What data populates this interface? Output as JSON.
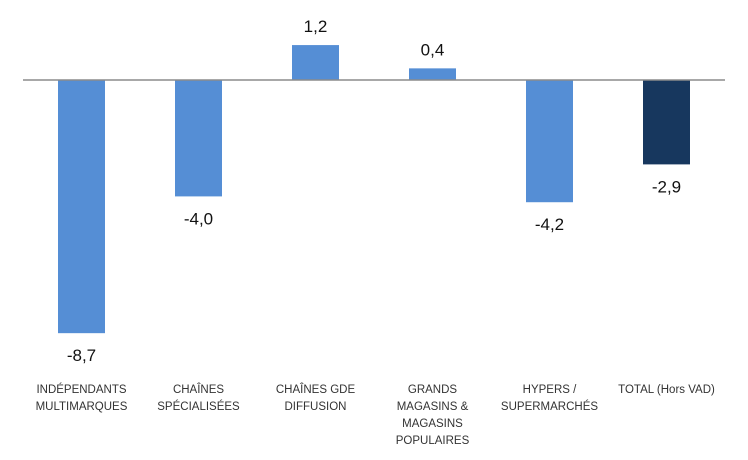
{
  "chart_data": {
    "type": "bar",
    "categories": [
      [
        "INDÉPENDANTS",
        "MULTIMARQUES"
      ],
      [
        "CHAÎNES",
        "SPÉCIALISÉES"
      ],
      [
        "CHAÎNES GDE",
        "DIFFUSION"
      ],
      [
        "GRANDS",
        "MAGASINS &",
        "MAGASINS",
        "POPULAIRES"
      ],
      [
        "HYPERS /",
        "SUPERMARCHÉS"
      ],
      [
        "TOTAL (Hors VAD)"
      ]
    ],
    "values": [
      -8.7,
      -4.0,
      1.2,
      0.4,
      -4.2,
      -2.9
    ],
    "value_labels": [
      "-8,7",
      "-4,0",
      "1,2",
      "0,4",
      "-4,2",
      "-2,9"
    ],
    "colors": [
      "#558ed5",
      "#558ed5",
      "#558ed5",
      "#558ed5",
      "#558ed5",
      "#17375e"
    ],
    "axis_color": "#8c8c8c",
    "ylim": [
      -8.7,
      1.2
    ],
    "grid": false,
    "legend": "none"
  }
}
